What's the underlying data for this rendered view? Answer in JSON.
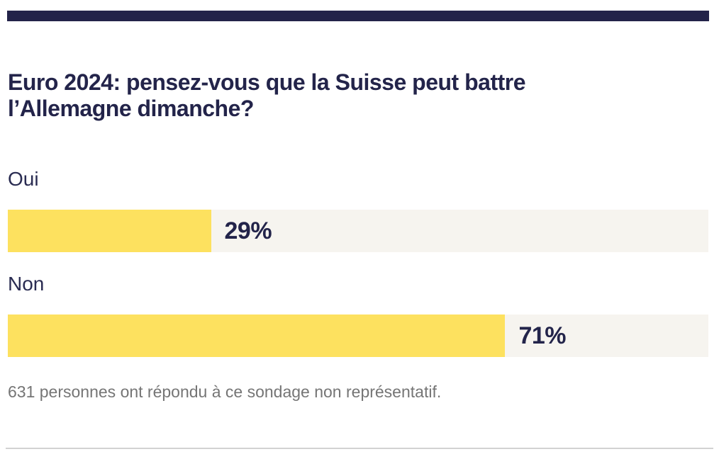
{
  "topbar": {
    "color": "#232349"
  },
  "poll": {
    "title_line1": "Euro 2024: pensez-vous que la Suisse peut battre",
    "title_line2": "l’Allemagne dimanche?",
    "options": [
      {
        "label": "Oui",
        "pct": 29,
        "pct_label": "29%"
      },
      {
        "label": "Non",
        "pct": 71,
        "pct_label": "71%"
      }
    ],
    "footer": "631 personnes ont répondu à ce sondage non représentatif."
  },
  "colors": {
    "navy": "#232349",
    "bar_yellow": "#fde15f",
    "bar_track": "#f6f4ef",
    "footer_gray": "#757575",
    "divider_gray": "#d2d2d2"
  },
  "chart_data": {
    "type": "bar",
    "orientation": "horizontal",
    "title": "Euro 2024: pensez-vous que la Suisse peut battre l’Allemagne dimanche?",
    "categories": [
      "Oui",
      "Non"
    ],
    "values": [
      29,
      71
    ],
    "unit": "%",
    "value_labels": [
      "29%",
      "71%"
    ],
    "xlim": [
      0,
      100
    ],
    "note": "631 personnes ont répondu à ce sondage non représentatif.",
    "legend": false,
    "grid": false
  }
}
